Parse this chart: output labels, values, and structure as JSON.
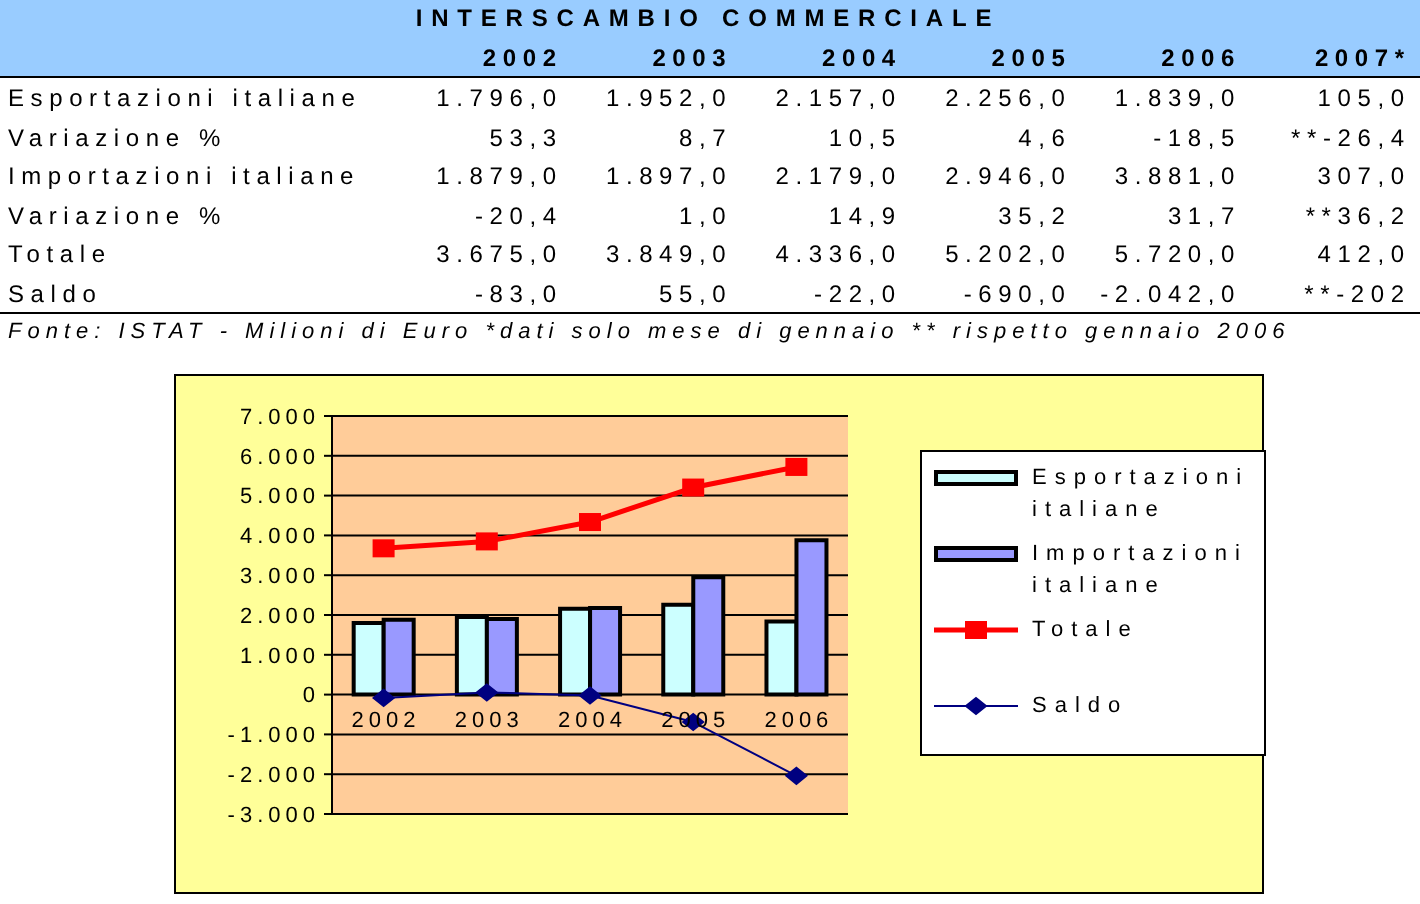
{
  "chart_data": [
    {
      "type": "heatmap",
      "title": "INTERSCAMBIO COMMERCIALE",
      "categories": [
        "2002",
        "2003",
        "2004",
        "2005",
        "2006",
        "2007*"
      ],
      "y_categories": [
        "Esportazioni italiane",
        "Variazione %",
        "Importazioni italiane",
        "Variazione %",
        "Totale",
        "Saldo"
      ],
      "cells": [
        [
          1796.0,
          1952.0,
          2157.0,
          2256.0,
          1839.0,
          105.0
        ],
        [
          53.3,
          8.7,
          10.5,
          4.6,
          -18.5,
          -26.4
        ],
        [
          1879.0,
          1897.0,
          2179.0,
          2946.0,
          3881.0,
          307.0
        ],
        [
          -20.4,
          1.0,
          14.9,
          35.2,
          31.7,
          36.2
        ],
        [
          3675.0,
          3849.0,
          4336.0,
          5202.0,
          5720.0,
          412.0
        ],
        [
          -83.0,
          55.0,
          -22.0,
          -690.0,
          -2042.0,
          -202
        ]
      ],
      "cell_labels": [
        [
          "1.796,0",
          "1.952,0",
          "2.157,0",
          "2.256,0",
          "1.839,0",
          "105,0"
        ],
        [
          "53,3",
          "8,7",
          "10,5",
          "4,6",
          "-18,5",
          "**-26,4"
        ],
        [
          "1.879,0",
          "1.897,0",
          "2.179,0",
          "2.946,0",
          "3.881,0",
          "307,0"
        ],
        [
          "-20,4",
          "1,0",
          "14,9",
          "35,2",
          "31,7",
          "**36,2"
        ],
        [
          "3.675,0",
          "3.849,0",
          "4.336,0",
          "5.202,0",
          "5.720,0",
          "412,0"
        ],
        [
          "-83,0",
          "55,0",
          "-22,0",
          "-690,0",
          "-2.042,0",
          "**-202"
        ]
      ],
      "annotations": [
        "Fonte: ISTAT - Milioni di Euro *dati solo mese di gennaio ** rispetto gennaio 2006"
      ]
    },
    {
      "type": "bar",
      "categories": [
        "2002",
        "2003",
        "2004",
        "2005",
        "2006"
      ],
      "series": [
        {
          "name": "Esportazioni italiane",
          "color": "#ccffff",
          "values": [
            1796,
            1952,
            2157,
            2256,
            1839
          ]
        },
        {
          "name": "Importazioni italiane",
          "color": "#9999ff",
          "values": [
            1879,
            1897,
            2179,
            2946,
            3881
          ]
        },
        {
          "name": "Totale",
          "type": "line",
          "color": "#ff0000",
          "marker": "square",
          "values": [
            3675,
            3849,
            4336,
            5202,
            5720
          ]
        },
        {
          "name": "Saldo",
          "type": "line",
          "color": "#000080",
          "marker": "diamond",
          "values": [
            -83,
            55,
            -22,
            -690,
            -2042
          ]
        }
      ],
      "ylim": [
        -3000,
        7000
      ],
      "yticks": [
        {
          "value": -3000,
          "label": "-3.000"
        },
        {
          "value": -2000,
          "label": "-2.000"
        },
        {
          "value": -1000,
          "label": "-1.000"
        },
        0,
        {
          "value": 1000,
          "label": "1.000"
        },
        {
          "value": 2000,
          "label": "2.000"
        },
        {
          "value": 3000,
          "label": "3.000"
        },
        {
          "value": 4000,
          "label": "4.000"
        },
        {
          "value": 5000,
          "label": "5.000"
        },
        {
          "value": 6000,
          "label": "6.000"
        },
        {
          "value": 7000,
          "label": "7.000"
        }
      ],
      "grid": "y",
      "legend": "right"
    }
  ]
}
